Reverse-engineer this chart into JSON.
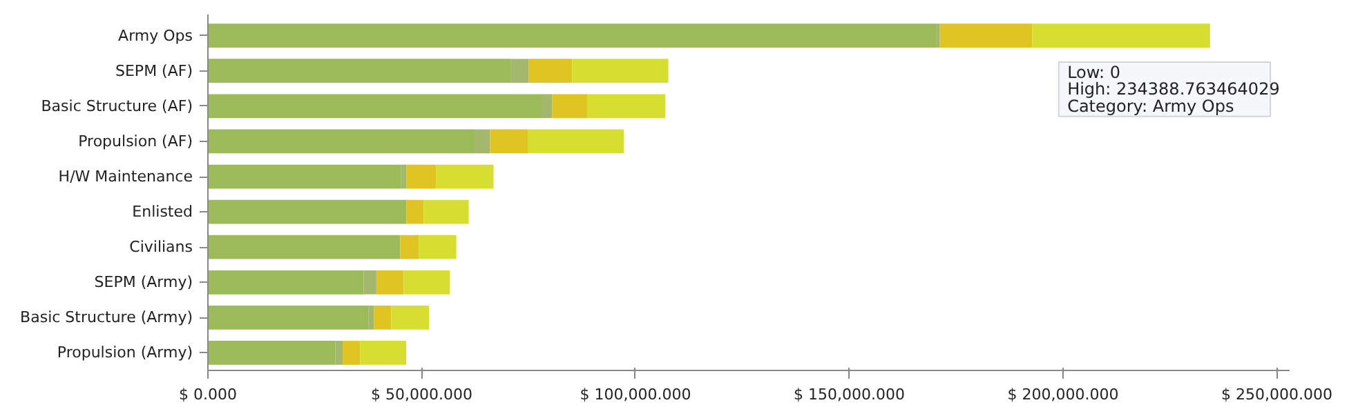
{
  "chart_data": {
    "type": "bar",
    "orientation": "horizontal",
    "stacked": true,
    "categories": [
      "Army Ops",
      "SEPM (AF)",
      "Basic Structure (AF)",
      "Propulsion (AF)",
      "H/W Maintenance",
      "Enlisted",
      "Civilians",
      "SEPM (Army)",
      "Basic Structure (Army)",
      "Propulsion (Army)"
    ],
    "series": [
      {
        "color": "#9bbb59",
        "values": [
          170300,
          70900,
          78200,
          62200,
          45200,
          46400,
          45000,
          36400,
          37600,
          29800
        ]
      },
      {
        "color": "#a3b86c",
        "values": [
          900,
          4100,
          2300,
          3800,
          1200,
          0,
          0,
          3000,
          1200,
          1700
        ]
      },
      {
        "color": "#e0c422",
        "values": [
          21600,
          10200,
          8200,
          8800,
          7000,
          4100,
          4300,
          6400,
          4100,
          4100
        ]
      },
      {
        "color": "#d6df30",
        "values": [
          41600,
          22500,
          18300,
          22500,
          13400,
          10500,
          8800,
          10800,
          8800,
          10800
        ]
      }
    ],
    "xlim": [
      0,
      253000
    ],
    "xticks": [
      {
        "value": 0,
        "label": "$ 0.000"
      },
      {
        "value": 50000,
        "label": "$ 50,000.000"
      },
      {
        "value": 100000,
        "label": "$ 100,000.000"
      },
      {
        "value": 150000,
        "label": "$ 150,000.000"
      },
      {
        "value": 200000,
        "label": "$ 200,000.000"
      },
      {
        "value": 250000,
        "label": "$ 250,000.000"
      }
    ],
    "annotations": [
      "Low: 0",
      "High: 234388.763464029",
      "Category: Army Ops"
    ],
    "grid": false
  }
}
